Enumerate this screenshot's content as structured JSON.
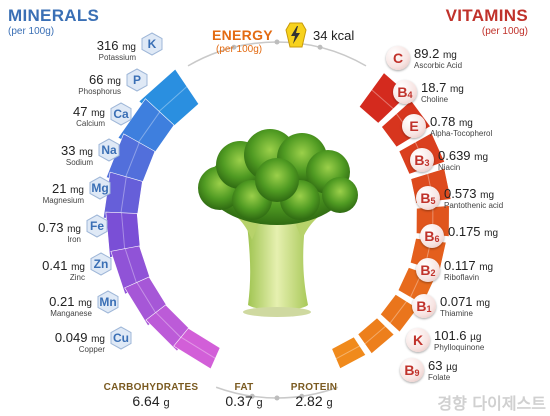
{
  "minerals": {
    "title": "MINERALS",
    "per": "(per 100g)",
    "items": [
      {
        "amount": "316",
        "unit": "mg",
        "name": "Potassium",
        "symbol": "K"
      },
      {
        "amount": "66",
        "unit": "mg",
        "name": "Phosphorus",
        "symbol": "P"
      },
      {
        "amount": "47",
        "unit": "mg",
        "name": "Calcium",
        "symbol": "Ca"
      },
      {
        "amount": "33",
        "unit": "mg",
        "name": "Sodium",
        "symbol": "Na"
      },
      {
        "amount": "21",
        "unit": "mg",
        "name": "Magnesium",
        "symbol": "Mg"
      },
      {
        "amount": "0.73",
        "unit": "mg",
        "name": "Iron",
        "symbol": "Fe"
      },
      {
        "amount": "0.41",
        "unit": "mg",
        "name": "Zinc",
        "symbol": "Zn"
      },
      {
        "amount": "0.21",
        "unit": "mg",
        "name": "Manganese",
        "symbol": "Mn"
      },
      {
        "amount": "0.049",
        "unit": "mg",
        "name": "Copper",
        "symbol": "Cu"
      }
    ]
  },
  "vitamins": {
    "title": "VITAMINS",
    "per": "(per 100g)",
    "items": [
      {
        "amount": "89.2",
        "unit": "mg",
        "name": "Ascorbic Acid",
        "letter": "C",
        "sub": ""
      },
      {
        "amount": "18.7",
        "unit": "mg",
        "name": "Choline",
        "letter": "B",
        "sub": "4"
      },
      {
        "amount": "0.78",
        "unit": "mg",
        "name": "Alpha-Tocopherol",
        "letter": "E",
        "sub": ""
      },
      {
        "amount": "0.639",
        "unit": "mg",
        "name": "Niacin",
        "letter": "B",
        "sub": "3"
      },
      {
        "amount": "0.573",
        "unit": "mg",
        "name": "Pantothenic acid",
        "letter": "B",
        "sub": "5"
      },
      {
        "amount": "0.175",
        "unit": "mg",
        "name": "",
        "letter": "B",
        "sub": "6"
      },
      {
        "amount": "0.117",
        "unit": "mg",
        "name": "Riboflavin",
        "letter": "B",
        "sub": "2"
      },
      {
        "amount": "0.071",
        "unit": "mg",
        "name": "Thiamine",
        "letter": "B",
        "sub": "1"
      },
      {
        "amount": "101.6",
        "unit": "µg",
        "name": "Phylloquinone",
        "letter": "K",
        "sub": ""
      },
      {
        "amount": "63",
        "unit": "µg",
        "name": "Folate",
        "letter": "B",
        "sub": "9"
      }
    ]
  },
  "energy": {
    "title": "ENERGY",
    "per": "(per 100g)",
    "value": "34",
    "unit": "kcal",
    "icon": "lightning-bolt-icon"
  },
  "macros": [
    {
      "label": "CARBOHYDRATES",
      "value": "6.64",
      "unit": "g"
    },
    {
      "label": "FAT",
      "value": "0.37",
      "unit": "g"
    },
    {
      "label": "PROTEIN",
      "value": "2.82",
      "unit": "g"
    }
  ],
  "watermark": "경향 다이제스트",
  "colors": {
    "minerals_title": "#3a6fb5",
    "vitamins_title": "#c0322b",
    "energy_title": "#e36b12",
    "mineral_gradient": [
      "#2a8fe0",
      "#7a4fd6",
      "#d25fd8"
    ],
    "vitamin_gradient": [
      "#d42a1e",
      "#f08a1c"
    ]
  }
}
